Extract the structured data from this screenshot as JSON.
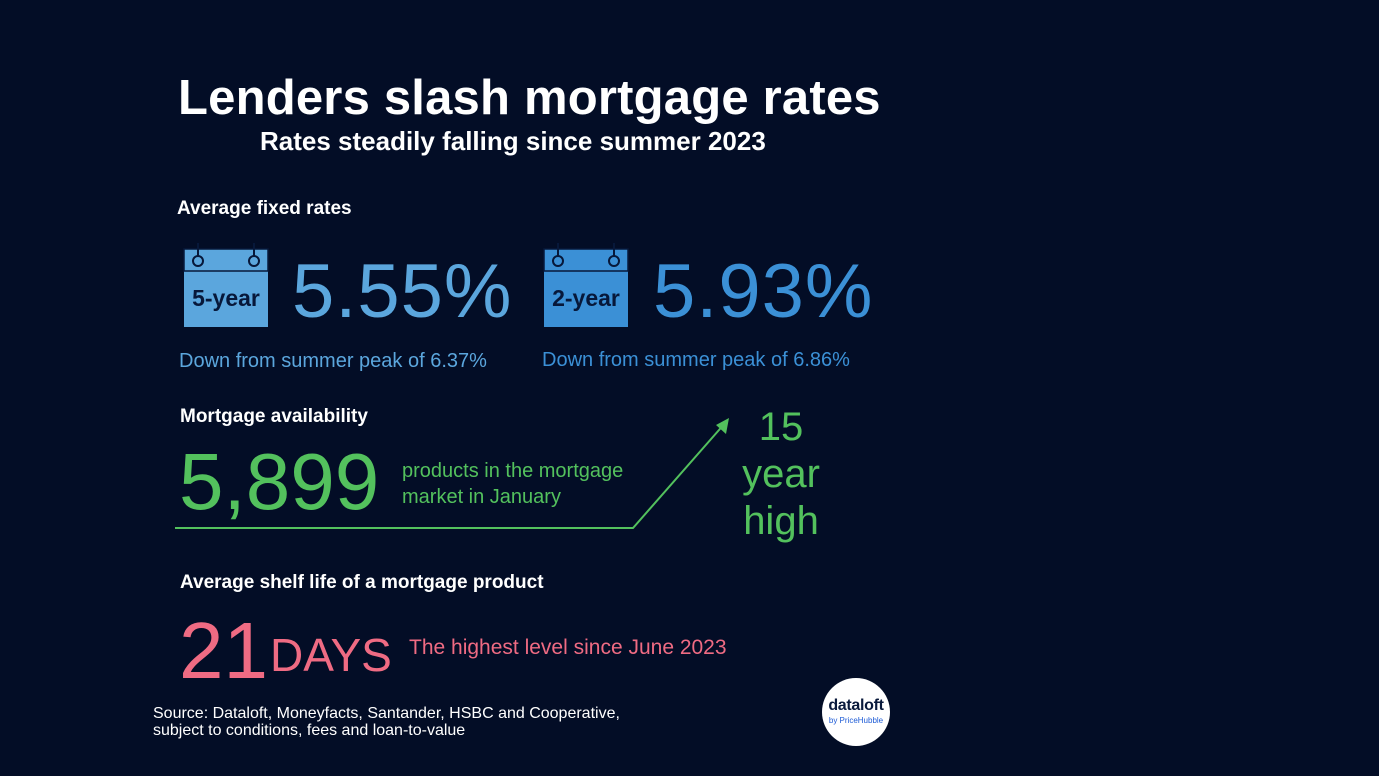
{
  "header": {
    "title": "Lenders slash mortgage rates",
    "subtitle": "Rates steadily falling since summer 2023"
  },
  "fixed_rates": {
    "label": "Average fixed rates",
    "items": [
      {
        "term": "5-year",
        "rate": "5.55%",
        "note": "Down from summer peak of 6.37%",
        "color": "#5ba6dd"
      },
      {
        "term": "2-year",
        "rate": "5.93%",
        "note": "Down from summer peak of 6.86%",
        "color": "#3b90d6"
      }
    ]
  },
  "availability": {
    "label": "Mortgage availability",
    "value": "5,899",
    "description_line1": "products in the mortgage",
    "description_line2": "market in January",
    "highlight_line1": "15",
    "highlight_line2": "year",
    "highlight_line3": "high",
    "color": "#53c15d"
  },
  "shelf_life": {
    "label": "Average shelf life of a mortgage product",
    "value": "21",
    "unit": "DAYS",
    "note": "The highest level since June 2023",
    "color": "#ef6b83"
  },
  "footer": {
    "source_line1": "Source: Dataloft, Moneyfacts, Santander, HSBC and Cooperative,",
    "source_line2": "subject to conditions, fees and loan-to-value",
    "logo_main": "dataloft",
    "logo_sub": "by PriceHubble"
  }
}
